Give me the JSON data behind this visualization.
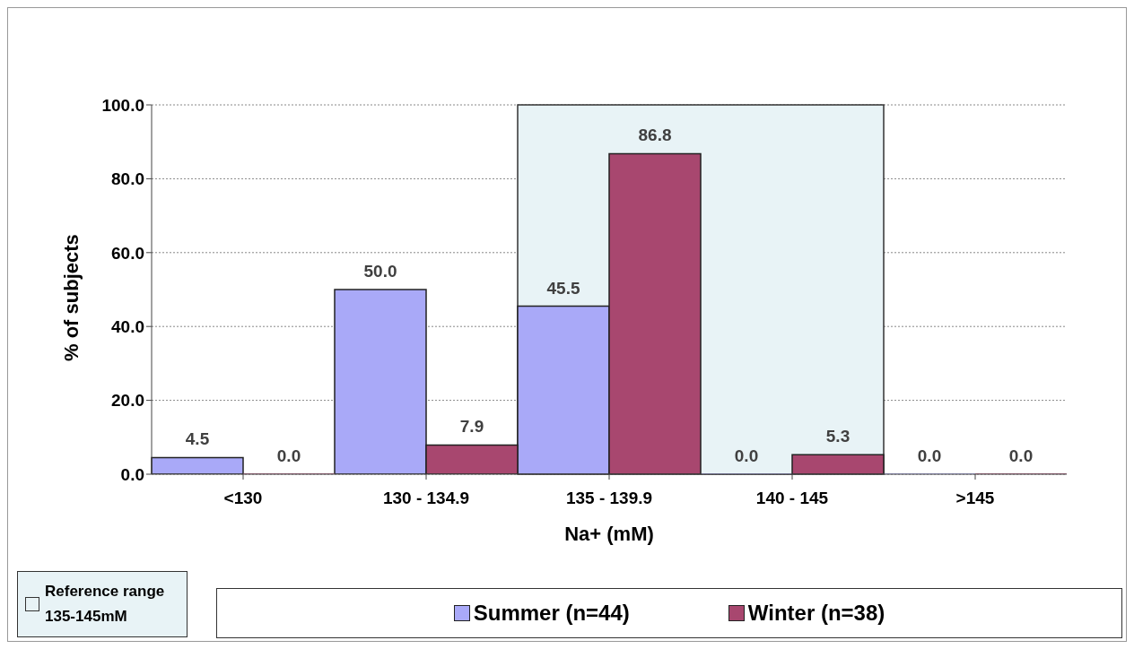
{
  "chart_data": {
    "type": "bar",
    "xlabel": "Na+ (mM)",
    "ylabel": "% of subjects",
    "categories": [
      "<130",
      "130 - 134.9",
      "135 - 139.9",
      "140 - 145",
      ">145"
    ],
    "series": [
      {
        "name": "Summer (n=44)",
        "color": "#a9a9f8",
        "values": [
          4.5,
          50.0,
          45.5,
          0.0,
          0.0
        ],
        "value_labels": [
          "4.5",
          "50.0",
          "45.5",
          "0.0",
          "0.0"
        ]
      },
      {
        "name": "Winter (n=38)",
        "color": "#a8476f",
        "values": [
          0.0,
          7.9,
          86.8,
          5.3,
          0.0
        ],
        "value_labels": [
          "0.0",
          "7.9",
          "86.8",
          "5.3",
          "0.0"
        ]
      }
    ],
    "ylim": [
      0,
      100
    ],
    "yticks": [
      {
        "value": 0,
        "label": "0.0"
      },
      {
        "value": 20,
        "label": "20.0"
      },
      {
        "value": 40,
        "label": "40.0"
      },
      {
        "value": 60,
        "label": "60.0"
      },
      {
        "value": 80,
        "label": "80.0"
      },
      {
        "value": 100,
        "label": "100.0"
      }
    ],
    "bands": [
      {
        "axis": "x",
        "from": "135 - 139.9",
        "to": "140 - 145",
        "label": "Reference range 135-145mM",
        "color": "#e8f3f6"
      }
    ],
    "grid": "y",
    "legend": "bottom"
  }
}
